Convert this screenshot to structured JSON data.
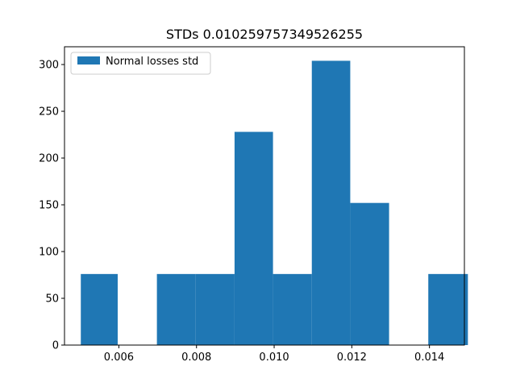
{
  "chart_data": {
    "type": "bar",
    "title": "STDs 0.010259757349526255",
    "xlabel": "",
    "ylabel": "",
    "legend": {
      "entries": [
        "Normal losses std"
      ],
      "placement": "top-left"
    },
    "grid": false,
    "bar_color": "#1f77b4",
    "xlim": [
      0.0046,
      0.0149
    ],
    "ylim": [
      0,
      319
    ],
    "x_ticks": [
      0.006,
      0.008,
      0.01,
      0.012,
      0.014
    ],
    "x_tick_labels": [
      "0.006",
      "0.008",
      "0.010",
      "0.012",
      "0.014"
    ],
    "y_ticks": [
      0,
      50,
      100,
      150,
      200,
      250,
      300
    ],
    "y_tick_labels": [
      "0",
      "50",
      "100",
      "150",
      "200",
      "250",
      "300"
    ],
    "bin_edges": [
      0.00502,
      0.00597,
      0.00698,
      0.00797,
      0.00898,
      0.00997,
      0.01097,
      0.01196,
      0.01296,
      0.01397,
      0.01499
    ],
    "values": [
      76,
      0,
      76,
      76,
      228,
      76,
      304,
      152,
      0,
      76
    ]
  }
}
